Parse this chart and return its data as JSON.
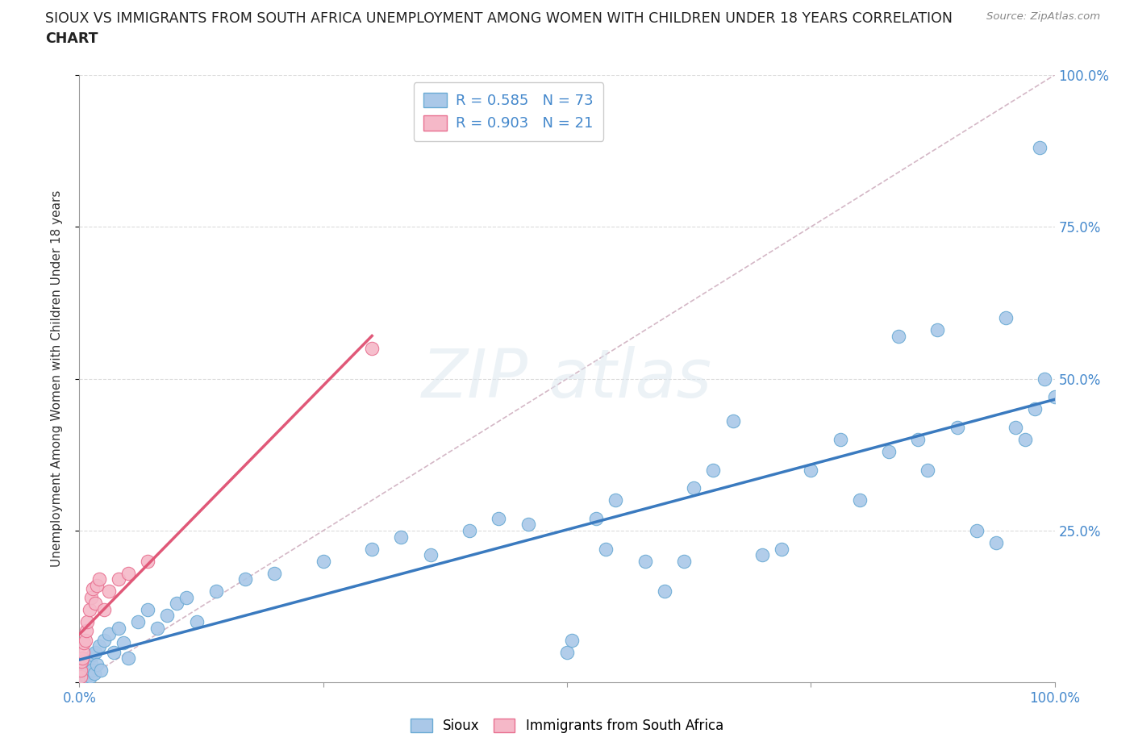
{
  "title_line1": "SIOUX VS IMMIGRANTS FROM SOUTH AFRICA UNEMPLOYMENT AMONG WOMEN WITH CHILDREN UNDER 18 YEARS CORRELATION",
  "title_line2": "CHART",
  "source_text": "Source: ZipAtlas.com",
  "ylabel": "Unemployment Among Women with Children Under 18 years",
  "sioux_R": 0.585,
  "sioux_N": 73,
  "sa_R": 0.903,
  "sa_N": 21,
  "sioux_color": "#aac8e8",
  "sioux_edge_color": "#6aaad4",
  "sioux_line_color": "#3a7abf",
  "sa_color": "#f5b8c8",
  "sa_edge_color": "#e87090",
  "sa_line_color": "#e05878",
  "ref_line_color": "#d0b0c0",
  "grid_color": "#cccccc",
  "tick_label_color": "#4488cc",
  "background_color": "#ffffff",
  "legend_label_sioux": "Sioux",
  "legend_label_sa": "Immigrants from South Africa",
  "sioux_x": [
    0.1,
    0.2,
    0.3,
    0.4,
    0.5,
    0.6,
    0.7,
    0.8,
    0.9,
    1.0,
    1.1,
    1.2,
    1.3,
    1.4,
    1.5,
    1.6,
    1.8,
    2.0,
    2.2,
    2.5,
    3.0,
    3.5,
    4.0,
    4.5,
    5.0,
    6.0,
    7.0,
    8.0,
    9.0,
    10.0,
    11.0,
    12.0,
    14.0,
    17.0,
    20.0,
    25.0,
    30.0,
    33.0,
    36.0,
    40.0,
    43.0,
    46.0,
    50.0,
    50.5,
    53.0,
    54.0,
    55.0,
    58.0,
    60.0,
    62.0,
    63.0,
    65.0,
    67.0,
    70.0,
    72.0,
    75.0,
    78.0,
    80.0,
    83.0,
    84.0,
    86.0,
    87.0,
    88.0,
    90.0,
    92.0,
    94.0,
    95.0,
    96.0,
    97.0,
    98.0,
    98.5,
    99.0,
    100.0
  ],
  "sioux_y": [
    1.0,
    2.0,
    3.0,
    1.5,
    0.5,
    2.5,
    1.0,
    3.5,
    2.0,
    4.0,
    1.0,
    3.0,
    2.0,
    4.5,
    1.5,
    5.0,
    3.0,
    6.0,
    2.0,
    7.0,
    8.0,
    5.0,
    9.0,
    6.5,
    4.0,
    10.0,
    12.0,
    9.0,
    11.0,
    13.0,
    14.0,
    10.0,
    15.0,
    17.0,
    18.0,
    20.0,
    22.0,
    24.0,
    21.0,
    25.0,
    27.0,
    26.0,
    5.0,
    7.0,
    27.0,
    22.0,
    30.0,
    20.0,
    15.0,
    20.0,
    32.0,
    35.0,
    43.0,
    21.0,
    22.0,
    35.0,
    40.0,
    30.0,
    38.0,
    57.0,
    40.0,
    35.0,
    58.0,
    42.0,
    25.0,
    23.0,
    60.0,
    42.0,
    40.0,
    45.0,
    88.0,
    50.0,
    47.0
  ],
  "sa_x": [
    0.1,
    0.15,
    0.2,
    0.3,
    0.4,
    0.5,
    0.6,
    0.7,
    0.8,
    1.0,
    1.2,
    1.4,
    1.6,
    1.8,
    2.0,
    2.5,
    3.0,
    4.0,
    5.0,
    7.0,
    30.0
  ],
  "sa_y": [
    1.0,
    2.0,
    3.5,
    4.0,
    5.0,
    6.5,
    7.0,
    8.5,
    10.0,
    12.0,
    14.0,
    15.5,
    13.0,
    16.0,
    17.0,
    12.0,
    15.0,
    17.0,
    18.0,
    20.0,
    55.0
  ]
}
